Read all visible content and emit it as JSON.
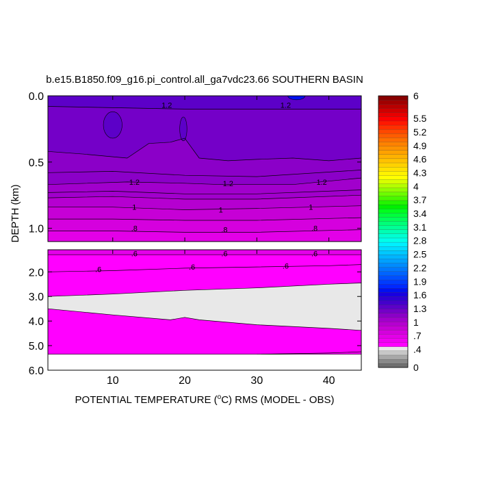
{
  "chart_data": {
    "type": "heatmap",
    "title": "b.e15.B1850.f09_g16.pi_control.all_ga7vdc23.66 SOUTHERN BASIN",
    "xlabel_prefix": "POTENTIAL TEMPERATURE (",
    "xlabel_unit_super": "o",
    "xlabel_suffix": "C) RMS (MODEL - OBS)",
    "ylabel": "DEPTH (km)",
    "xlim": [
      1,
      44.5
    ],
    "x_ticks": [
      10,
      20,
      30,
      40
    ],
    "x_tick_labels": [
      "10",
      "20",
      "30",
      "40"
    ],
    "upper_panel": {
      "ylim": [
        0.0,
        1.1
      ],
      "y_ticks": [
        0.0,
        0.5,
        1.0
      ],
      "y_tick_labels": [
        "0.0",
        "0.5",
        "1.0"
      ]
    },
    "lower_panel": {
      "ylim": [
        1.1,
        6.0
      ],
      "y_ticks": [
        2.0,
        3.0,
        4.0,
        5.0,
        6.0
      ],
      "y_tick_labels": [
        "2.0",
        "3.0",
        "4.0",
        "5.0",
        "6.0"
      ],
      "data_bottom": 5.35
    },
    "contour_level_step": 0.1,
    "layers": [
      {
        "panel": "upper",
        "value": 1.35,
        "depth_top": [
          [
            1,
            0.0
          ],
          [
            44.5,
            0.0
          ]
        ],
        "depth_bottom": [
          [
            1,
            0.08
          ],
          [
            10,
            0.09
          ],
          [
            20,
            0.1
          ],
          [
            30,
            0.1
          ],
          [
            44.5,
            0.1
          ]
        ]
      },
      {
        "panel": "upper",
        "value": 1.25,
        "depth_top": [
          [
            1,
            0.08
          ],
          [
            10,
            0.09
          ],
          [
            20,
            0.1
          ],
          [
            30,
            0.1
          ],
          [
            44.5,
            0.1
          ]
        ],
        "depth_bottom": [
          [
            1,
            0.42
          ],
          [
            6,
            0.44
          ],
          [
            10,
            0.46
          ],
          [
            12,
            0.47
          ],
          [
            15,
            0.36
          ],
          [
            18,
            0.35
          ],
          [
            20,
            0.32
          ],
          [
            22,
            0.47
          ],
          [
            26,
            0.49
          ],
          [
            30,
            0.48
          ],
          [
            35,
            0.47
          ],
          [
            40,
            0.49
          ],
          [
            44.5,
            0.47
          ]
        ]
      },
      {
        "panel": "upper",
        "value": 1.15,
        "depth_top": [
          [
            1,
            0.42
          ],
          [
            6,
            0.44
          ],
          [
            10,
            0.46
          ],
          [
            12,
            0.47
          ],
          [
            15,
            0.36
          ],
          [
            18,
            0.35
          ],
          [
            20,
            0.32
          ],
          [
            22,
            0.47
          ],
          [
            26,
            0.49
          ],
          [
            30,
            0.48
          ],
          [
            35,
            0.47
          ],
          [
            40,
            0.49
          ],
          [
            44.5,
            0.47
          ]
        ],
        "depth_bottom": [
          [
            1,
            0.67
          ],
          [
            12,
            0.65
          ],
          [
            20,
            0.66
          ],
          [
            25,
            0.67
          ],
          [
            35,
            0.67
          ],
          [
            44.5,
            0.62
          ]
        ]
      },
      {
        "panel": "upper",
        "value": 1.05,
        "depth_top": [
          [
            1,
            0.67
          ],
          [
            12,
            0.65
          ],
          [
            20,
            0.66
          ],
          [
            25,
            0.67
          ],
          [
            35,
            0.67
          ],
          [
            44.5,
            0.62
          ]
        ],
        "depth_bottom": [
          [
            1,
            0.77
          ],
          [
            10,
            0.76
          ],
          [
            20,
            0.78
          ],
          [
            30,
            0.78
          ],
          [
            44.5,
            0.75
          ]
        ]
      },
      {
        "panel": "upper",
        "value": 0.95,
        "depth_top": [
          [
            1,
            0.77
          ],
          [
            10,
            0.76
          ],
          [
            20,
            0.78
          ],
          [
            30,
            0.78
          ],
          [
            44.5,
            0.75
          ]
        ],
        "depth_bottom": [
          [
            1,
            0.84
          ],
          [
            10,
            0.84
          ],
          [
            20,
            0.86
          ],
          [
            30,
            0.85
          ],
          [
            44.5,
            0.83
          ]
        ]
      },
      {
        "panel": "upper",
        "value": 0.85,
        "depth_top": [
          [
            1,
            0.84
          ],
          [
            10,
            0.84
          ],
          [
            20,
            0.86
          ],
          [
            30,
            0.85
          ],
          [
            44.5,
            0.83
          ]
        ],
        "depth_bottom": [
          [
            1,
            0.93
          ],
          [
            10,
            0.93
          ],
          [
            20,
            0.94
          ],
          [
            30,
            0.94
          ],
          [
            44.5,
            0.92
          ]
        ]
      },
      {
        "panel": "upper",
        "value": 0.75,
        "depth_top": [
          [
            1,
            0.93
          ],
          [
            10,
            0.93
          ],
          [
            20,
            0.94
          ],
          [
            30,
            0.94
          ],
          [
            44.5,
            0.92
          ]
        ],
        "depth_bottom": [
          [
            1,
            1.02
          ],
          [
            10,
            1.02
          ],
          [
            20,
            1.03
          ],
          [
            30,
            1.03
          ],
          [
            44.5,
            1.01
          ]
        ]
      },
      {
        "panel": "upper",
        "value": 0.65,
        "depth_top": [
          [
            1,
            1.02
          ],
          [
            10,
            1.02
          ],
          [
            20,
            1.03
          ],
          [
            30,
            1.03
          ],
          [
            44.5,
            1.01
          ]
        ],
        "depth_bottom": [
          [
            1,
            1.1
          ],
          [
            44.5,
            1.1
          ]
        ]
      },
      {
        "panel": "lower",
        "value": 0.65,
        "depth_top": [
          [
            1,
            1.1
          ],
          [
            44.5,
            1.1
          ]
        ],
        "depth_bottom": [
          [
            1,
            1.3
          ],
          [
            44.5,
            1.3
          ]
        ]
      },
      {
        "panel": "lower",
        "value": 0.55,
        "depth_top": [
          [
            1,
            1.3
          ],
          [
            44.5,
            1.3
          ]
        ],
        "depth_bottom": [
          [
            1,
            3.0
          ],
          [
            10,
            2.9
          ],
          [
            20,
            2.75
          ],
          [
            30,
            2.65
          ],
          [
            40,
            2.5
          ],
          [
            44.5,
            2.45
          ]
        ]
      },
      {
        "panel": "lower",
        "value": 0.45,
        "depth_top": [
          [
            1,
            3.0
          ],
          [
            10,
            2.9
          ],
          [
            20,
            2.75
          ],
          [
            30,
            2.65
          ],
          [
            40,
            2.5
          ],
          [
            44.5,
            2.45
          ]
        ],
        "depth_bottom": [
          [
            1,
            3.5
          ],
          [
            10,
            3.75
          ],
          [
            18,
            3.95
          ],
          [
            20,
            3.85
          ],
          [
            22,
            3.95
          ],
          [
            30,
            4.15
          ],
          [
            40,
            4.3
          ],
          [
            44.5,
            4.38
          ]
        ]
      },
      {
        "panel": "lower",
        "value": 0.55,
        "depth_top": [
          [
            1,
            3.5
          ],
          [
            10,
            3.75
          ],
          [
            18,
            3.95
          ],
          [
            20,
            3.85
          ],
          [
            22,
            3.95
          ],
          [
            30,
            4.15
          ],
          [
            40,
            4.3
          ],
          [
            44.5,
            4.38
          ]
        ],
        "depth_bottom": [
          [
            1,
            5.35
          ],
          [
            44.5,
            5.35
          ]
        ]
      }
    ],
    "features": [
      {
        "panel": "upper",
        "value": 1.35,
        "center": [
          10,
          0.22
        ],
        "radius": [
          1.3,
          0.1
        ]
      },
      {
        "panel": "upper",
        "value": 1.35,
        "center": [
          19.8,
          0.25
        ],
        "radius": [
          0.5,
          0.09
        ]
      },
      {
        "panel": "upper",
        "value": 1.75,
        "center": [
          35.5,
          0.0
        ],
        "radius": [
          1.2,
          0.03
        ]
      }
    ],
    "contour_lines": [
      {
        "panel": "upper",
        "points": [
          [
            1,
            0.42
          ],
          [
            6,
            0.44
          ],
          [
            10,
            0.46
          ],
          [
            12,
            0.47
          ],
          [
            15,
            0.36
          ],
          [
            18,
            0.35
          ],
          [
            20,
            0.32
          ],
          [
            22,
            0.47
          ],
          [
            26,
            0.49
          ],
          [
            30,
            0.48
          ],
          [
            35,
            0.47
          ],
          [
            40,
            0.49
          ],
          [
            44.5,
            0.47
          ]
        ]
      },
      {
        "panel": "upper",
        "points": [
          [
            1,
            0.58
          ],
          [
            10,
            0.57
          ],
          [
            20,
            0.6
          ],
          [
            30,
            0.61
          ],
          [
            44.5,
            0.56
          ]
        ]
      },
      {
        "panel": "upper",
        "points": [
          [
            1,
            0.67
          ],
          [
            12,
            0.65
          ],
          [
            20,
            0.66
          ],
          [
            25,
            0.67
          ],
          [
            35,
            0.67
          ],
          [
            44.5,
            0.62
          ]
        ]
      },
      {
        "panel": "upper",
        "points": [
          [
            1,
            0.73
          ],
          [
            10,
            0.72
          ],
          [
            20,
            0.74
          ],
          [
            30,
            0.74
          ],
          [
            44.5,
            0.71
          ]
        ]
      },
      {
        "panel": "upper",
        "points": [
          [
            1,
            0.77
          ],
          [
            10,
            0.76
          ],
          [
            20,
            0.78
          ],
          [
            30,
            0.78
          ],
          [
            44.5,
            0.75
          ]
        ]
      },
      {
        "panel": "upper",
        "points": [
          [
            1,
            0.84
          ],
          [
            10,
            0.84
          ],
          [
            20,
            0.86
          ],
          [
            30,
            0.85
          ],
          [
            44.5,
            0.83
          ]
        ]
      },
      {
        "panel": "upper",
        "points": [
          [
            1,
            0.93
          ],
          [
            10,
            0.93
          ],
          [
            20,
            0.94
          ],
          [
            30,
            0.94
          ],
          [
            44.5,
            0.92
          ]
        ]
      },
      {
        "panel": "upper",
        "points": [
          [
            1,
            1.02
          ],
          [
            10,
            1.02
          ],
          [
            20,
            1.03
          ],
          [
            30,
            1.03
          ],
          [
            44.5,
            1.01
          ]
        ]
      },
      {
        "panel": "upper",
        "points": [
          [
            1,
            0.08
          ],
          [
            10,
            0.09
          ],
          [
            20,
            0.1
          ],
          [
            30,
            0.1
          ],
          [
            44.5,
            0.1
          ]
        ]
      },
      {
        "panel": "lower",
        "points": [
          [
            1,
            1.3
          ],
          [
            44.5,
            1.3
          ]
        ]
      },
      {
        "panel": "lower",
        "points": [
          [
            1,
            2.0
          ],
          [
            10,
            1.95
          ],
          [
            20,
            1.85
          ],
          [
            30,
            1.8
          ],
          [
            40,
            1.75
          ],
          [
            44.5,
            1.7
          ]
        ]
      },
      {
        "panel": "lower",
        "points": [
          [
            1,
            3.0
          ],
          [
            10,
            2.9
          ],
          [
            20,
            2.75
          ],
          [
            30,
            2.65
          ],
          [
            40,
            2.5
          ],
          [
            44.5,
            2.45
          ]
        ]
      },
      {
        "panel": "lower",
        "points": [
          [
            1,
            3.5
          ],
          [
            10,
            3.75
          ],
          [
            18,
            3.95
          ],
          [
            20,
            3.85
          ],
          [
            22,
            3.95
          ],
          [
            30,
            4.15
          ],
          [
            40,
            4.3
          ],
          [
            44.5,
            4.38
          ]
        ]
      },
      {
        "panel": "lower",
        "points": [
          [
            30,
            5.35
          ],
          [
            40,
            5.3
          ],
          [
            44.5,
            5.25
          ]
        ]
      }
    ],
    "contour_labels": [
      {
        "panel": "upper",
        "x": 17.5,
        "y": 0.07,
        "text": "1.2"
      },
      {
        "panel": "upper",
        "x": 34,
        "y": 0.07,
        "text": "1.2"
      },
      {
        "panel": "upper",
        "x": 13,
        "y": 0.65,
        "text": "1.2"
      },
      {
        "panel": "upper",
        "x": 26,
        "y": 0.66,
        "text": "1.2"
      },
      {
        "panel": "upper",
        "x": 39,
        "y": 0.65,
        "text": "1.2"
      },
      {
        "panel": "upper",
        "x": 13,
        "y": 0.84,
        "text": "1"
      },
      {
        "panel": "upper",
        "x": 25,
        "y": 0.86,
        "text": "1"
      },
      {
        "panel": "upper",
        "x": 37.5,
        "y": 0.84,
        "text": "1"
      },
      {
        "panel": "upper",
        "x": 13,
        "y": 1.0,
        "text": ".8"
      },
      {
        "panel": "upper",
        "x": 25.5,
        "y": 1.01,
        "text": ".8"
      },
      {
        "panel": "upper",
        "x": 38,
        "y": 1.0,
        "text": ".8"
      },
      {
        "panel": "lower",
        "x": 13,
        "y": 1.25,
        "text": ".6"
      },
      {
        "panel": "lower",
        "x": 25.5,
        "y": 1.25,
        "text": ".6"
      },
      {
        "panel": "lower",
        "x": 38,
        "y": 1.25,
        "text": ".6"
      },
      {
        "panel": "lower",
        "x": 8,
        "y": 1.9,
        "text": ".6"
      },
      {
        "panel": "lower",
        "x": 21,
        "y": 1.8,
        "text": ".6"
      },
      {
        "panel": "lower",
        "x": 34,
        "y": 1.75,
        "text": ".6"
      }
    ],
    "colorbar": {
      "range": [
        0,
        6
      ],
      "labels": [
        "6",
        "5.5",
        "5.2",
        "4.9",
        "4.6",
        "4.3",
        "4",
        "3.7",
        "3.4",
        "3.1",
        "2.8",
        "2.5",
        "2.2",
        "1.9",
        "1.6",
        "1.3",
        "1",
        ".7",
        ".4",
        "0"
      ],
      "label_values": [
        6,
        5.5,
        5.2,
        4.9,
        4.6,
        4.3,
        4.0,
        3.7,
        3.4,
        3.1,
        2.8,
        2.5,
        2.2,
        1.9,
        1.6,
        1.3,
        1.0,
        0.7,
        0.4,
        0
      ],
      "colors": [
        "#707070",
        "#8a8a8a",
        "#a8a8a8",
        "#c8c8c8",
        "#e8e8e8",
        "#ff00ff",
        "#f100f3",
        "#e300e8",
        "#d500de",
        "#c600d6",
        "#b500d0",
        "#a100cc",
        "#8b00c8",
        "#7400c8",
        "#5c00c8",
        "#4400cc",
        "#2f00d4",
        "#1800e0",
        "#0010f0",
        "#0028ff",
        "#003cff",
        "#0050ff",
        "#0064ff",
        "#0078ff",
        "#008cff",
        "#00a0ff",
        "#00b4ff",
        "#00c8ff",
        "#00dcff",
        "#00f0ff",
        "#00ffea",
        "#00ffd2",
        "#00ffb4",
        "#00ff96",
        "#00ff78",
        "#00ff5a",
        "#00ff3c",
        "#00ff1e",
        "#00f000",
        "#24f400",
        "#48f800",
        "#6cfc00",
        "#90ff00",
        "#b4ff00",
        "#d8ff00",
        "#ffff00",
        "#fff200",
        "#ffe200",
        "#ffd200",
        "#ffc200",
        "#ffb200",
        "#ffa200",
        "#ff9200",
        "#ff8200",
        "#ff7000",
        "#ff5c00",
        "#ff4800",
        "#ff3000",
        "#ff1800",
        "#ff0000",
        "#e80000",
        "#d00000",
        "#b80000",
        "#a00000",
        "#880000"
      ]
    }
  }
}
